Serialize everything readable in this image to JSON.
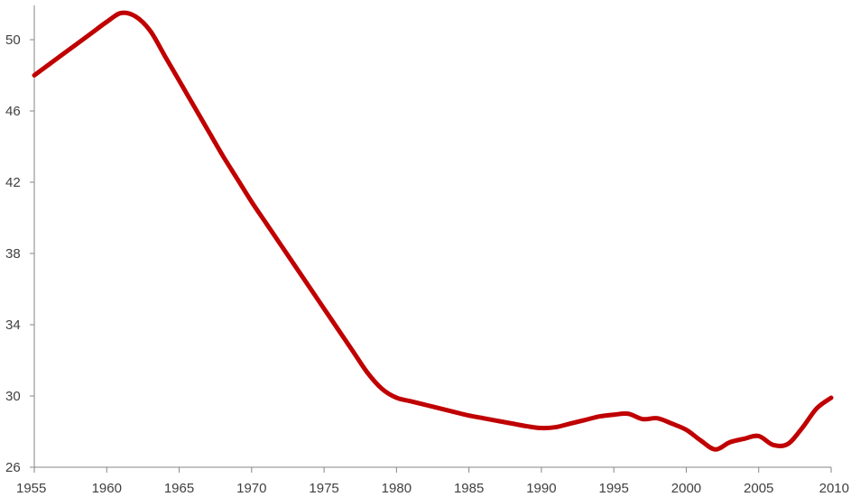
{
  "chart_data": {
    "type": "line",
    "title": "",
    "xlabel": "",
    "ylabel": "",
    "xlim": [
      1955,
      2010
    ],
    "ylim": [
      26,
      52
    ],
    "x_ticks": [
      "1955",
      "1960",
      "1965",
      "1970",
      "1975",
      "1980",
      "1985",
      "1990",
      "1995",
      "2000",
      "2005",
      "2010"
    ],
    "y_ticks": [
      "26",
      "30",
      "34",
      "38",
      "42",
      "46",
      "50"
    ],
    "grid": false,
    "legend": "none",
    "line_color": "#C00000",
    "axis_color": "#868686",
    "series": [
      {
        "x": [
          1955,
          1956,
          1957,
          1958,
          1959,
          1960,
          1961,
          1962,
          1963,
          1964,
          1965,
          1966,
          1967,
          1968,
          1969,
          1970,
          1971,
          1972,
          1973,
          1974,
          1975,
          1976,
          1977,
          1978,
          1979,
          1980,
          1981,
          1982,
          1983,
          1984,
          1985,
          1986,
          1987,
          1988,
          1989,
          1990,
          1991,
          1992,
          1993,
          1994,
          1995,
          1996,
          1997,
          1998,
          1999,
          2000,
          2001,
          2002,
          2003,
          2004,
          2005,
          2006,
          2007,
          2008,
          2009,
          2010
        ],
        "values": [
          48.0,
          48.6,
          49.2,
          49.8,
          50.4,
          51.0,
          51.5,
          51.3,
          50.5,
          49.1,
          47.7,
          46.3,
          44.9,
          43.5,
          42.2,
          40.9,
          39.7,
          38.5,
          37.3,
          36.1,
          34.9,
          33.7,
          32.5,
          31.3,
          30.4,
          29.9,
          29.7,
          29.5,
          29.3,
          29.1,
          28.9,
          28.75,
          28.6,
          28.45,
          28.3,
          28.2,
          28.25,
          28.45,
          28.65,
          28.85,
          28.95,
          29.0,
          28.7,
          28.75,
          28.45,
          28.1,
          27.5,
          27.0,
          27.4,
          27.6,
          27.75,
          27.25,
          27.3,
          28.2,
          29.3,
          29.9
        ]
      }
    ]
  }
}
